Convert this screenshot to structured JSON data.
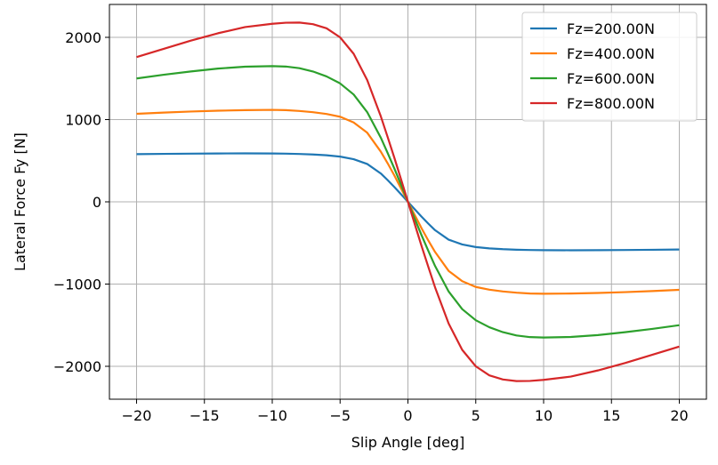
{
  "chart_data": {
    "type": "line",
    "title": "",
    "xlabel": "Slip Angle [deg]",
    "ylabel": "Lateral Force Fy [N]",
    "xlim": [
      -22,
      22
    ],
    "ylim": [
      -2400,
      2400
    ],
    "xticks": [
      -20,
      -15,
      -10,
      -5,
      0,
      5,
      10,
      15,
      20
    ],
    "xtick_labels": [
      "−20",
      "−15",
      "−10",
      "−5",
      "0",
      "5",
      "10",
      "15",
      "20"
    ],
    "yticks": [
      -2000,
      -1000,
      0,
      1000,
      2000
    ],
    "ytick_labels": [
      "−2000",
      "−1000",
      "0",
      "1000",
      "2000"
    ],
    "grid": true,
    "legend_position": "top-right",
    "x": [
      -20,
      -18,
      -16,
      -14,
      -12,
      -10,
      -9,
      -8,
      -7,
      -6,
      -5,
      -4,
      -3,
      -2,
      -1.5,
      -1,
      -0.5,
      0,
      0.5,
      1,
      1.5,
      2,
      3,
      4,
      5,
      6,
      7,
      8,
      9,
      10,
      12,
      14,
      16,
      18,
      20
    ],
    "series": [
      {
        "name": "Fz=200.00N",
        "color": "#1f77b4",
        "values": [
          580,
          583,
          586,
          588,
          589,
          588,
          586,
          582,
          576,
          566,
          550,
          518,
          460,
          345,
          265,
          180,
          90,
          0,
          -90,
          -180,
          -265,
          -345,
          -460,
          -518,
          -550,
          -566,
          -576,
          -582,
          -586,
          -588,
          -589,
          -588,
          -586,
          -583,
          -580
        ]
      },
      {
        "name": "Fz=400.00N",
        "color": "#ff7f0e",
        "values": [
          1070,
          1085,
          1098,
          1108,
          1115,
          1118,
          1115,
          1105,
          1090,
          1068,
          1035,
          965,
          840,
          610,
          470,
          320,
          160,
          0,
          -160,
          -320,
          -470,
          -610,
          -840,
          -965,
          -1035,
          -1068,
          -1090,
          -1105,
          -1115,
          -1118,
          -1115,
          -1108,
          -1098,
          -1085,
          -1070
        ]
      },
      {
        "name": "Fz=600.00N",
        "color": "#2ca02c",
        "values": [
          1500,
          1545,
          1585,
          1620,
          1643,
          1650,
          1645,
          1625,
          1585,
          1525,
          1440,
          1305,
          1090,
          780,
          595,
          405,
          205,
          0,
          -205,
          -405,
          -595,
          -780,
          -1090,
          -1305,
          -1440,
          -1525,
          -1585,
          -1625,
          -1645,
          -1650,
          -1643,
          -1620,
          -1585,
          -1545,
          -1500
        ]
      },
      {
        "name": "Fz=800.00N",
        "color": "#d62728",
        "values": [
          1760,
          1860,
          1960,
          2050,
          2125,
          2165,
          2178,
          2180,
          2160,
          2110,
          2000,
          1800,
          1480,
          1040,
          790,
          535,
          270,
          0,
          -270,
          -535,
          -790,
          -1040,
          -1480,
          -1800,
          -2000,
          -2110,
          -2160,
          -2180,
          -2178,
          -2165,
          -2125,
          -2050,
          -1960,
          -1860,
          -1760
        ]
      }
    ]
  }
}
